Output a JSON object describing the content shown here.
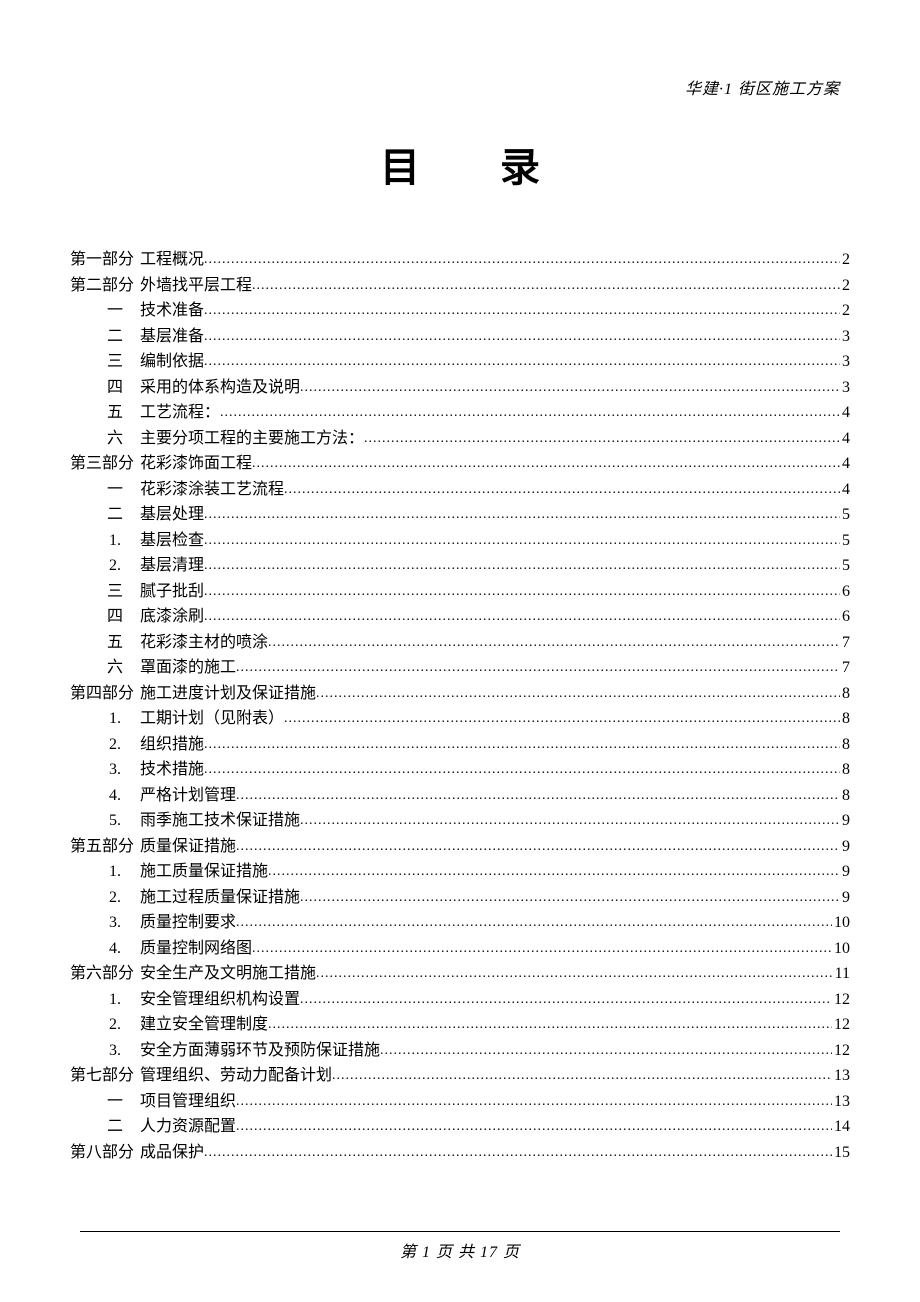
{
  "header": {
    "text": "华建·1 街区施工方案"
  },
  "title": {
    "char1": "目",
    "char2": "录"
  },
  "footer": {
    "prefix": "第 ",
    "current": "1",
    "mid": " 页 共 ",
    "total": "17",
    "suffix": " 页"
  },
  "toc": [
    {
      "level": 0,
      "prefix": "第一部分",
      "label": "工程概况",
      "page": "2"
    },
    {
      "level": 0,
      "prefix": "第二部分",
      "label": "外墙找平层工程",
      "page": "2"
    },
    {
      "level": 1,
      "prefix": "一",
      "label": "技术准备",
      "page": "2"
    },
    {
      "level": 1,
      "prefix": "二",
      "label": "基层准备",
      "page": "3"
    },
    {
      "level": 1,
      "prefix": "三",
      "label": "编制依据",
      "page": "3"
    },
    {
      "level": 1,
      "prefix": "四",
      "label": "采用的体系构造及说明",
      "page": "3"
    },
    {
      "level": 1,
      "prefix": "五",
      "label": "工艺流程：",
      "page": "4"
    },
    {
      "level": 1,
      "prefix": "六",
      "label": "主要分项工程的主要施工方法：",
      "page": "4"
    },
    {
      "level": 0,
      "prefix": "第三部分",
      "label": "花彩漆饰面工程",
      "page": "4"
    },
    {
      "level": 1,
      "prefix": "一",
      "label": "花彩漆涂装工艺流程",
      "page": "4"
    },
    {
      "level": 1,
      "prefix": "二",
      "label": "基层处理",
      "page": "5"
    },
    {
      "level": 1,
      "prefix": "1.",
      "label": "基层检查",
      "page": "5",
      "arabic": true
    },
    {
      "level": 1,
      "prefix": "2.",
      "label": "基层清理",
      "page": "5",
      "arabic": true
    },
    {
      "level": 1,
      "prefix": "三",
      "label": "腻子批刮",
      "page": "6"
    },
    {
      "level": 1,
      "prefix": "四",
      "label": "底漆涂刷",
      "page": "6"
    },
    {
      "level": 1,
      "prefix": "五",
      "label": "花彩漆主材的喷涂",
      "page": "7"
    },
    {
      "level": 1,
      "prefix": "六",
      "label": "罩面漆的施工",
      "page": "7"
    },
    {
      "level": 0,
      "prefix": "第四部分",
      "label": "施工进度计划及保证措施",
      "page": "8"
    },
    {
      "level": 1,
      "prefix": "1.",
      "label": "工期计划（见附表）",
      "page": "8",
      "arabic": true
    },
    {
      "level": 1,
      "prefix": "2.",
      "label": "组织措施",
      "page": "8",
      "arabic": true
    },
    {
      "level": 1,
      "prefix": "3.",
      "label": "技术措施",
      "page": "8",
      "arabic": true
    },
    {
      "level": 1,
      "prefix": "4.",
      "label": "严格计划管理",
      "page": "8",
      "arabic": true
    },
    {
      "level": 1,
      "prefix": "5.",
      "label": "雨季施工技术保证措施",
      "page": "9",
      "arabic": true
    },
    {
      "level": 0,
      "prefix": "第五部分",
      "label": "质量保证措施",
      "page": "9"
    },
    {
      "level": 1,
      "prefix": "1.",
      "label": "施工质量保证措施",
      "page": "9",
      "arabic": true
    },
    {
      "level": 1,
      "prefix": "2.",
      "label": "施工过程质量保证措施",
      "page": "9",
      "arabic": true
    },
    {
      "level": 1,
      "prefix": "3.",
      "label": "质量控制要求",
      "page": "10",
      "arabic": true
    },
    {
      "level": 1,
      "prefix": "4.",
      "label": "质量控制网络图",
      "page": "10",
      "arabic": true
    },
    {
      "level": 0,
      "prefix": "第六部分",
      "label": "安全生产及文明施工措施",
      "page": "11"
    },
    {
      "level": 1,
      "prefix": "1.",
      "label": "安全管理组织机构设置",
      "page": "12",
      "arabic": true
    },
    {
      "level": 1,
      "prefix": "2.",
      "label": "建立安全管理制度",
      "page": "12",
      "arabic": true
    },
    {
      "level": 1,
      "prefix": "3.",
      "label": "安全方面薄弱环节及预防保证措施",
      "page": "12",
      "arabic": true
    },
    {
      "level": 0,
      "prefix": "第七部分",
      "label": "管理组织、劳动力配备计划",
      "page": "13"
    },
    {
      "level": 1,
      "prefix": "一",
      "label": "项目管理组织",
      "page": "13"
    },
    {
      "level": 1,
      "prefix": "二",
      "label": "人力资源配置",
      "page": "14"
    },
    {
      "level": 0,
      "prefix": "第八部分",
      "label": "成品保护",
      "page": "15"
    }
  ]
}
